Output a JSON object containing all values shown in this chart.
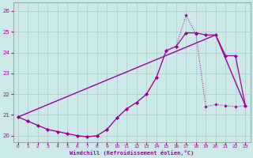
{
  "xlabel": "Windchill (Refroidissement éolien,°C)",
  "xlim": [
    -0.5,
    23.5
  ],
  "ylim": [
    19.7,
    26.4
  ],
  "yticks": [
    20,
    21,
    22,
    23,
    24,
    25,
    26
  ],
  "xticks": [
    0,
    1,
    2,
    3,
    4,
    5,
    6,
    7,
    8,
    9,
    10,
    11,
    12,
    13,
    14,
    15,
    16,
    17,
    18,
    19,
    20,
    21,
    22,
    23
  ],
  "bg_color": "#cde8e8",
  "grid_color": "#aacccc",
  "line_color": "#990099",
  "series_wc": {
    "x": [
      0,
      1,
      2,
      3,
      4,
      5,
      6,
      7,
      8,
      9,
      10,
      11,
      12,
      13,
      14,
      15,
      16,
      17,
      18,
      19,
      20,
      21,
      22,
      23
    ],
    "y": [
      20.9,
      20.7,
      20.5,
      20.3,
      20.2,
      20.1,
      20.0,
      19.95,
      20.0,
      20.3,
      20.85,
      21.3,
      21.6,
      22.0,
      22.8,
      24.1,
      24.3,
      25.8,
      24.9,
      21.4,
      21.5,
      21.45,
      21.4,
      21.45
    ]
  },
  "series_temp": {
    "x": [
      0,
      1,
      2,
      3,
      4,
      5,
      6,
      7,
      8,
      9,
      10,
      11,
      12,
      13,
      14,
      15,
      16,
      17,
      18,
      19,
      20,
      21,
      22,
      23
    ],
    "y": [
      20.9,
      20.7,
      20.5,
      20.3,
      20.2,
      20.1,
      20.0,
      19.95,
      20.0,
      20.3,
      20.85,
      21.3,
      21.6,
      22.0,
      22.8,
      24.1,
      24.3,
      24.95,
      24.95,
      24.85,
      24.85,
      23.85,
      23.85,
      21.45
    ]
  },
  "series_line": {
    "x": [
      0,
      20,
      23
    ],
    "y": [
      20.9,
      24.85,
      21.45
    ]
  }
}
